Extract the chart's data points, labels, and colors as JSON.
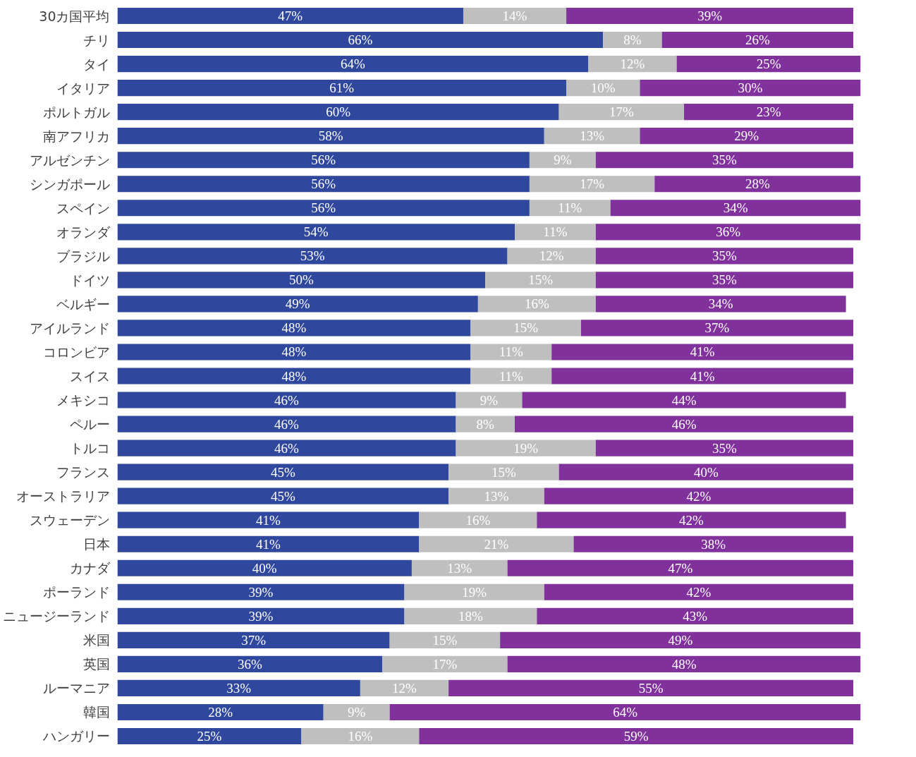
{
  "chart_data": {
    "type": "bar",
    "orientation": "horizontal",
    "stacked": true,
    "tick_labels": "y",
    "categories": [
      "30カ国平均",
      "チリ",
      "タイ",
      "イタリア",
      "ポルトガル",
      "南アフリカ",
      "アルゼンチン",
      "シンガポール",
      "スペイン",
      "オランダ",
      "ブラジル",
      "ドイツ",
      "ベルギー",
      "アイルランド",
      "コロンビア",
      "スイス",
      "メキシコ",
      "ペルー",
      "トルコ",
      "フランス",
      "オーストラリア",
      "スウェーデン",
      "日本",
      "カナダ",
      "ポーランド",
      "ニュージーランド",
      "米国",
      "英国",
      "ルーマニア",
      "韓国",
      "ハンガリー"
    ],
    "series": [
      {
        "color": "#2f479d",
        "values": [
          47,
          66,
          64,
          61,
          60,
          58,
          56,
          56,
          56,
          54,
          53,
          50,
          49,
          48,
          48,
          48,
          46,
          46,
          46,
          45,
          45,
          41,
          41,
          40,
          39,
          39,
          37,
          36,
          33,
          28,
          25
        ],
        "value_labels": [
          "47%",
          "66%",
          "64%",
          "61%",
          "60%",
          "58%",
          "56%",
          "56%",
          "56%",
          "54%",
          "53%",
          "50%",
          "49%",
          "48%",
          "48%",
          "48%",
          "46%",
          "46%",
          "46%",
          "45%",
          "45%",
          "41%",
          "41%",
          "40%",
          "39%",
          "39%",
          "37%",
          "36%",
          "33%",
          "28%",
          "25%"
        ]
      },
      {
        "color": "#bfbfbf",
        "values": [
          14,
          8,
          12,
          10,
          17,
          13,
          9,
          17,
          11,
          11,
          12,
          15,
          16,
          15,
          11,
          11,
          9,
          8,
          19,
          15,
          13,
          16,
          21,
          13,
          19,
          18,
          15,
          17,
          12,
          9,
          16
        ],
        "value_labels": [
          "14%",
          "8%",
          "12%",
          "10%",
          "17%",
          "13%",
          "9%",
          "17%",
          "11%",
          "11%",
          "12%",
          "15%",
          "16%",
          "15%",
          "11%",
          "11%",
          "9%",
          "8%",
          "19%",
          "15%",
          "13%",
          "16%",
          "21%",
          "13%",
          "19%",
          "18%",
          "15%",
          "17%",
          "12%",
          "9%",
          "16%"
        ]
      },
      {
        "color": "#80319b",
        "values": [
          39,
          26,
          25,
          30,
          23,
          29,
          35,
          28,
          34,
          36,
          35,
          35,
          34,
          37,
          41,
          41,
          44,
          46,
          35,
          40,
          42,
          42,
          38,
          47,
          42,
          43,
          49,
          48,
          55,
          64,
          59
        ],
        "value_labels": [
          "39%",
          "26%",
          "25%",
          "30%",
          "23%",
          "29%",
          "35%",
          "28%",
          "34%",
          "36%",
          "35%",
          "35%",
          "34%",
          "37%",
          "41%",
          "41%",
          "44%",
          "46%",
          "35%",
          "40%",
          "42%",
          "42%",
          "38%",
          "47%",
          "42%",
          "43%",
          "49%",
          "48%",
          "55%",
          "64%",
          "59%"
        ]
      }
    ]
  }
}
